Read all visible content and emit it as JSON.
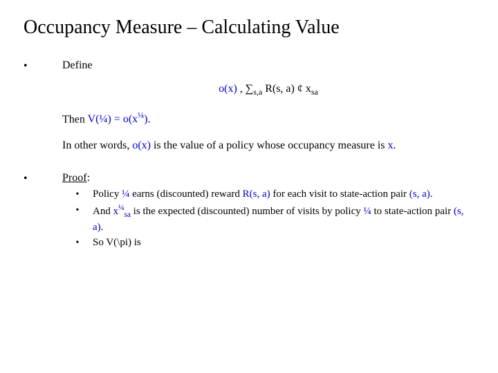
{
  "title": "Occupancy Measure – Calculating Value",
  "colors": {
    "text": "#000000",
    "accent": "#0000cc",
    "background": "#ffffff"
  },
  "typography": {
    "family": "Times New Roman",
    "title_size_pt": 28,
    "body_size_pt": 16,
    "proof_size_pt": 15
  },
  "bullet_glyph": "•",
  "section1": {
    "heading": "Define",
    "formula": {
      "lhs": "o(x)",
      "sep": " , ",
      "sum": "∑",
      "sum_sub": "s,a",
      "mid": " R(s, a) ",
      "cent": "¢",
      "x": " x",
      "x_sub": "sa"
    },
    "then": {
      "prefix": "Then ",
      "Vopen": "V(",
      "pi": "¼",
      "Vclose": ") = ",
      "o_open": "o(x",
      "o_sup": "¼",
      "o_close": ")",
      "suffix": "."
    },
    "inwords": {
      "p1": "In other words, ",
      "ox": "o(x)",
      "p2": " is the value of a policy whose occupancy measure is ",
      "x": "x",
      "p3": "."
    }
  },
  "section2": {
    "heading": "Proof",
    "colon": ":",
    "items": [
      {
        "p1": "Policy ",
        "pi": "¼",
        "p2": " earns (discounted) reward ",
        "R": "R(s, a)",
        "p3": " for each visit to state-action pair ",
        "sa": "(s, a)",
        "p4": "."
      },
      {
        "p1": "And ",
        "x": "x",
        "x_sup": "¼",
        "x_sub": "sa",
        "p2": " is the expected (discounted) number of visits by policy ",
        "pi": "¼",
        "p3": " to state-action pair ",
        "sa": "(s, a)",
        "p4": "."
      },
      {
        "p1": "So V(\\pi) is"
      }
    ]
  }
}
